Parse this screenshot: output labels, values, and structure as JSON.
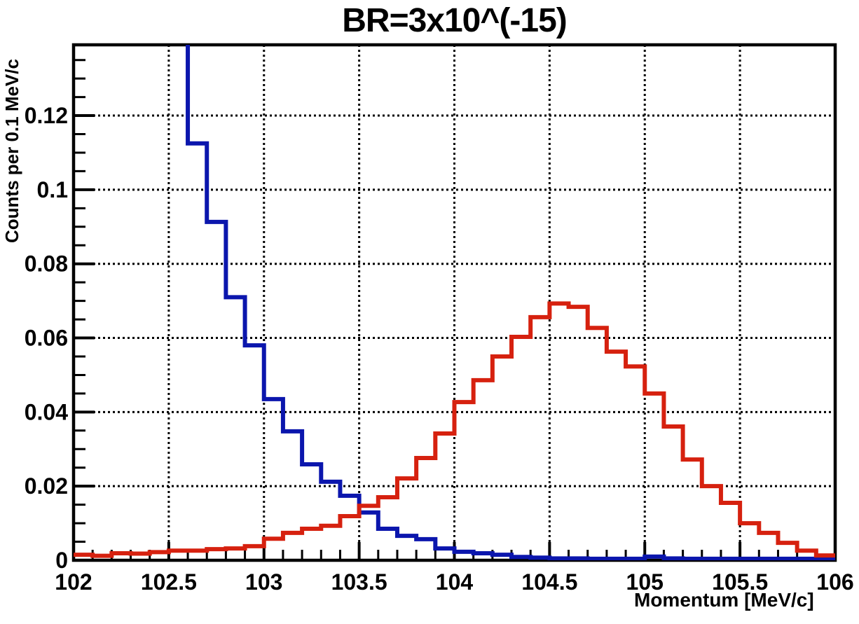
{
  "chart_data": {
    "type": "line",
    "style": "step-histogram",
    "title": "BR=3x10^(-15)",
    "xlabel": "Momentum [MeV/c]",
    "ylabel": "Counts per 0.1 MeV/c",
    "xlim": [
      102,
      106
    ],
    "ylim": [
      0,
      0.1391
    ],
    "bin_width": 0.1,
    "grid": "dotted-major-both",
    "legend": "none",
    "x_major_ticks": [
      102,
      102.5,
      103,
      103.5,
      104,
      104.5,
      105,
      105.5,
      106
    ],
    "x_tick_labels": [
      "102",
      "102.5",
      "103",
      "103.5",
      "104",
      "104.5",
      "105",
      "105.5",
      "106"
    ],
    "x_minor_step": 0.1,
    "y_major_ticks": [
      0,
      0.02,
      0.04,
      0.06,
      0.08,
      0.1,
      0.12
    ],
    "y_tick_labels": [
      "0",
      "0.02",
      "0.04",
      "0.06",
      "0.08",
      "0.1",
      "0.12"
    ],
    "y_minor_step": 0.005,
    "grid_color": "#000000",
    "frame_color": "#000000",
    "series": [
      {
        "name": "blue-falling-histogram",
        "color": "#0b16ad",
        "bin_start": 102.6,
        "clipped_above_top_before_start": true,
        "note": "off-scale above plot top for momentum < 102.6",
        "values": [
          0.1125,
          0.0913,
          0.071,
          0.058,
          0.0435,
          0.0348,
          0.0259,
          0.0212,
          0.0174,
          0.0129,
          0.0085,
          0.0066,
          0.0057,
          0.0032,
          0.0023,
          0.0019,
          0.0015,
          0.0009,
          0.0007,
          0.0005,
          0.0005,
          0.0004,
          0.0004,
          0.0004,
          0.001,
          0.0005,
          0.0004,
          0.0004,
          0.0004,
          0.0004,
          0.0004,
          0.0004,
          0.0004,
          0.0004
        ]
      },
      {
        "name": "red-peaked-histogram",
        "color": "#d6210f",
        "bin_start": 102.0,
        "clipped_above_top_before_start": false,
        "note": "peaks near 104.5-104.6",
        "values": [
          0.0015,
          0.0012,
          0.0019,
          0.0018,
          0.0022,
          0.0026,
          0.0026,
          0.003,
          0.0032,
          0.0038,
          0.0058,
          0.0074,
          0.0085,
          0.0093,
          0.0119,
          0.0147,
          0.017,
          0.0221,
          0.0276,
          0.0342,
          0.0427,
          0.0486,
          0.055,
          0.0603,
          0.0656,
          0.0693,
          0.0684,
          0.0627,
          0.0563,
          0.0523,
          0.045,
          0.0361,
          0.0272,
          0.02,
          0.0155,
          0.01,
          0.0074,
          0.0047,
          0.0026,
          0.0013
        ]
      }
    ]
  }
}
